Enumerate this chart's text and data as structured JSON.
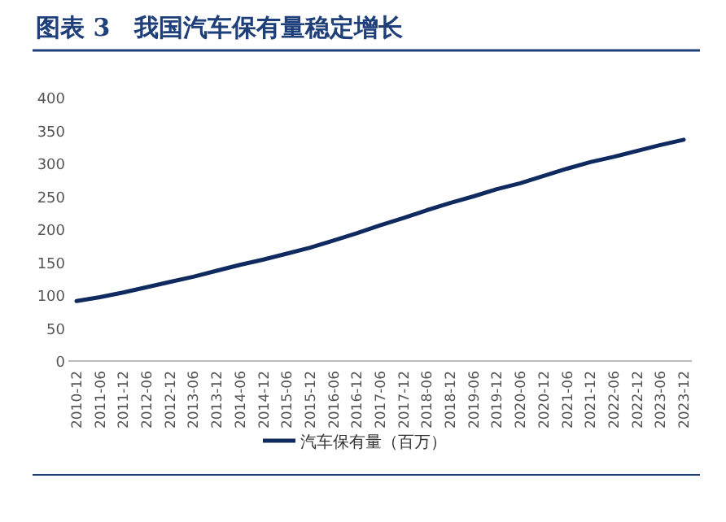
{
  "chart_data": {
    "type": "line",
    "title": "图表 3　我国汽车保有量稳定增长",
    "categories": [
      "2010-12",
      "2011-06",
      "2011-12",
      "2012-06",
      "2012-12",
      "2013-06",
      "2013-12",
      "2014-06",
      "2014-12",
      "2015-06",
      "2015-12",
      "2016-06",
      "2016-12",
      "2017-06",
      "2017-12",
      "2018-06",
      "2018-12",
      "2019-06",
      "2019-12",
      "2020-06",
      "2020-12",
      "2021-06",
      "2021-12",
      "2022-06",
      "2022-12",
      "2023-06",
      "2023-12"
    ],
    "series": [
      {
        "name": "汽车保有量（百万）",
        "color": "#0e2a5e",
        "values": [
          91,
          97,
          104,
          112,
          120,
          128,
          137,
          146,
          154,
          163,
          172,
          183,
          194,
          206,
          217,
          229,
          240,
          250,
          261,
          270,
          281,
          292,
          302,
          310,
          319,
          328,
          336
        ]
      }
    ],
    "ylim": [
      0,
      400
    ],
    "yticks": [
      0,
      50,
      100,
      150,
      200,
      250,
      300,
      350,
      400
    ],
    "grid": false,
    "legend": "bottom"
  }
}
